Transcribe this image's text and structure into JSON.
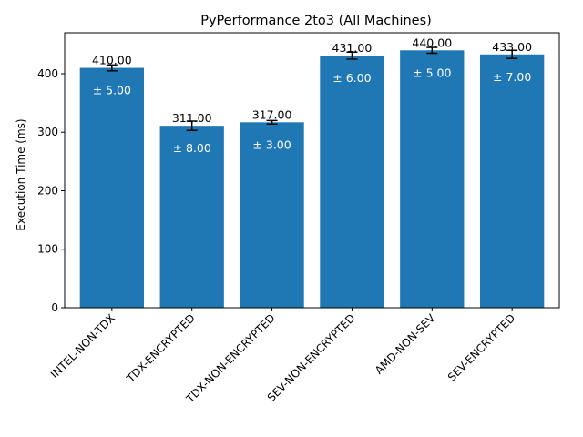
{
  "chart_data": {
    "type": "bar",
    "title": "PyPerformance 2to3 (All Machines)",
    "xlabel": "",
    "ylabel": "Execution Time (ms)",
    "categories": [
      "INTEL-NON-TDX",
      "TDX-ENCRYPTED",
      "TDX-NON-ENCRYPTED",
      "SEV-NON-ENCRYPTED",
      "AMD-NON-SEV",
      "SEV-ENCRYPTED"
    ],
    "values": [
      410,
      311,
      317,
      431,
      440,
      433
    ],
    "errors": [
      5,
      8,
      3,
      6,
      5,
      7
    ],
    "value_labels": [
      "410.00",
      "311.00",
      "317.00",
      "431.00",
      "440.00",
      "433.00"
    ],
    "error_labels": [
      "± 5.00",
      "± 8.00",
      "± 3.00",
      "± 6.00",
      "± 5.00",
      "± 7.00"
    ],
    "ylim": [
      0,
      470
    ],
    "yticks": [
      0,
      100,
      200,
      300,
      400
    ],
    "grid": false,
    "bar_color": "#1f77b4"
  }
}
